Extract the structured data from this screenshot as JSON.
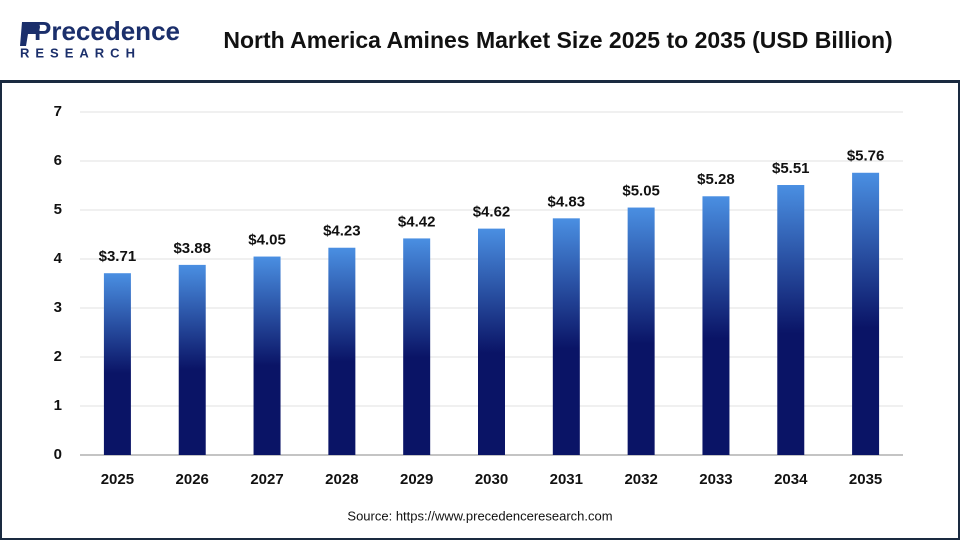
{
  "logo": {
    "name": "Precedence",
    "tagline": "RESEARCH"
  },
  "chart_data": {
    "type": "bar",
    "title": "North America Amines Market Size 2025 to 2035 (USD Billion)",
    "categories": [
      "2025",
      "2026",
      "2027",
      "2028",
      "2029",
      "2030",
      "2031",
      "2032",
      "2033",
      "2034",
      "2035"
    ],
    "values": [
      3.71,
      3.88,
      4.05,
      4.23,
      4.42,
      4.62,
      4.83,
      5.05,
      5.28,
      5.51,
      5.76
    ],
    "value_labels": [
      "$3.71",
      "$3.88",
      "$4.05",
      "$4.23",
      "$4.42",
      "$4.62",
      "$4.83",
      "$5.05",
      "$5.28",
      "$5.51",
      "$5.76"
    ],
    "gradient": [
      "#4a8fe2",
      "#0a1466"
    ],
    "ylim": [
      0,
      7
    ],
    "yticks": [
      0,
      1,
      2,
      3,
      4,
      5,
      6,
      7
    ],
    "grid": true,
    "source": "Source: https://www.precedenceresearch.com"
  }
}
